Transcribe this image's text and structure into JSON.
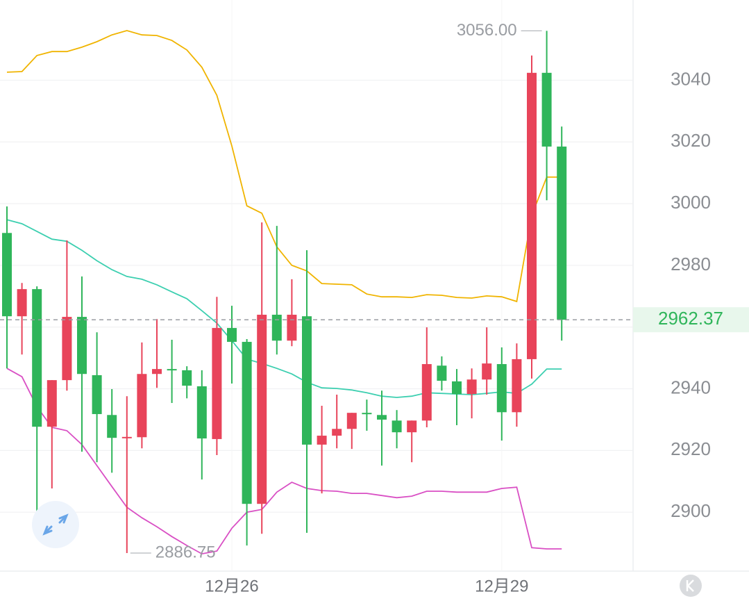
{
  "chart_data": {
    "type": "candlestick",
    "categories": [
      null,
      null,
      null,
      null,
      null,
      null,
      null,
      null,
      null,
      null,
      null,
      null,
      null,
      null,
      null,
      "12月26",
      null,
      null,
      null,
      null,
      null,
      null,
      null,
      null,
      null,
      null,
      null,
      null,
      null,
      null,
      null,
      null,
      null,
      "12月29",
      null,
      null,
      null,
      null
    ],
    "open": [
      2990.5,
      2963.5,
      2972.3,
      2927.7,
      2942.8,
      2963.3,
      2944.4,
      2931.5,
      2924.3,
      2924.3,
      2944.8,
      2946.4,
      2946.0,
      2940.8,
      2923.7,
      2959.7,
      2955.2,
      2902.7,
      2964.0,
      2955.6,
      2963.5,
      2921.9,
      2924.8,
      2927.0,
      2932.2,
      2931.5,
      2929.7,
      2925.9,
      2929.7,
      2947.5,
      2942.4,
      2938.3,
      2943.0,
      2948.0,
      2932.4,
      2949.6,
      3042.4,
      3018.5
    ],
    "high": [
      2999.1,
      2974.3,
      2973.2,
      2942.8,
      2988.1,
      2976.4,
      2958.3,
      2939.9,
      2937.6,
      2955.0,
      2962.6,
      2955.9,
      2947.3,
      2946.0,
      2969.8,
      2966.9,
      2956.1,
      2993.9,
      2992.8,
      2975.5,
      2984.9,
      2934.5,
      2938.1,
      2932.2,
      2936.5,
      2939.4,
      2933.1,
      2929.7,
      2959.9,
      2950.5,
      2946.4,
      2946.6,
      2959.9,
      2953.4,
      2954.7,
      3048.0,
      3056.0,
      3025.0
    ],
    "low": [
      2946.6,
      2951.1,
      2899.8,
      2907.7,
      2939.4,
      2919.6,
      2916.2,
      2912.8,
      2886.75,
      2920.7,
      2940.3,
      2935.4,
      2936.9,
      2910.6,
      2918.5,
      2941.7,
      2889.2,
      2893.0,
      2951.1,
      2953.8,
      2893.3,
      2906.1,
      2920.7,
      2920.5,
      2926.4,
      2915.1,
      2920.7,
      2916.2,
      2927.5,
      2939.4,
      2928.2,
      2930.4,
      2938.1,
      2923.2,
      2927.7,
      2943.3,
      3001.1,
      2955.6
    ],
    "close": [
      2963.5,
      2972.3,
      2927.7,
      2942.8,
      2963.3,
      2944.8,
      2931.8,
      2924.1,
      2924.4,
      2944.8,
      2946.4,
      2946.0,
      2941.0,
      2923.9,
      2959.7,
      2955.2,
      2902.7,
      2964.0,
      2955.6,
      2964.0,
      2921.9,
      2924.8,
      2927.0,
      2932.2,
      2932.0,
      2930.0,
      2925.9,
      2929.7,
      2948.0,
      2942.6,
      2938.3,
      2943.0,
      2948.2,
      2932.4,
      2949.6,
      3042.4,
      3018.5,
      2962.37
    ],
    "up_color": "#e8445a",
    "down_color": "#2fb55a",
    "series": [
      {
        "color": "#f0b400",
        "values": [
          3042.6,
          3042.8,
          3048.0,
          3049.3,
          3049.3,
          3050.7,
          3052.5,
          3054.7,
          3056.1,
          3054.7,
          3054.5,
          3052.9,
          3049.8,
          3044.2,
          3035.1,
          3018.7,
          2999.3,
          2996.9,
          2986.0,
          2980.0,
          2978.2,
          2974.1,
          2973.9,
          2973.7,
          2970.7,
          2969.8,
          2969.8,
          2969.6,
          2970.5,
          2970.3,
          2969.6,
          2969.4,
          2970.1,
          2969.8,
          2968.3,
          2996.2,
          3008.6,
          3008.6
        ]
      },
      {
        "color": "#3ccfb0",
        "values": [
          2994.8,
          2993.5,
          2991.0,
          2988.5,
          2987.8,
          2984.9,
          2981.5,
          2978.6,
          2976.4,
          2975.5,
          2973.7,
          2971.4,
          2969.2,
          2965.3,
          2961.3,
          2955.6,
          2949.6,
          2948.2,
          2946.6,
          2944.8,
          2942.1,
          2940.3,
          2940.1,
          2939.6,
          2938.7,
          2937.6,
          2937.2,
          2937.6,
          2938.7,
          2938.5,
          2938.3,
          2938.1,
          2938.5,
          2939.0,
          2938.5,
          2941.5,
          2946.4,
          2946.4
        ]
      },
      {
        "color": "#d94fc4",
        "values": [
          2946.6,
          2943.9,
          2934.2,
          2927.5,
          2926.4,
          2921.9,
          2915.1,
          2908.3,
          2901.6,
          2898.2,
          2895.3,
          2892.1,
          2889.2,
          2886.5,
          2887.4,
          2894.8,
          2900.0,
          2900.9,
          2906.5,
          2909.7,
          2907.7,
          2907.0,
          2906.8,
          2906.1,
          2906.1,
          2905.4,
          2904.7,
          2905.2,
          2906.8,
          2906.8,
          2906.5,
          2906.5,
          2906.5,
          2907.7,
          2908.1,
          2888.5,
          2888.1,
          2888.1
        ]
      }
    ],
    "ylim": [
      2880,
      3066
    ],
    "yticks": [
      2900,
      2920,
      2940,
      2960,
      2980,
      3000,
      3020,
      3040
    ],
    "grid": true,
    "last_price": 2962.37,
    "high_annotation": {
      "value": 3056,
      "label": "3056.00"
    },
    "low_annotation": 2886.75
  }
}
